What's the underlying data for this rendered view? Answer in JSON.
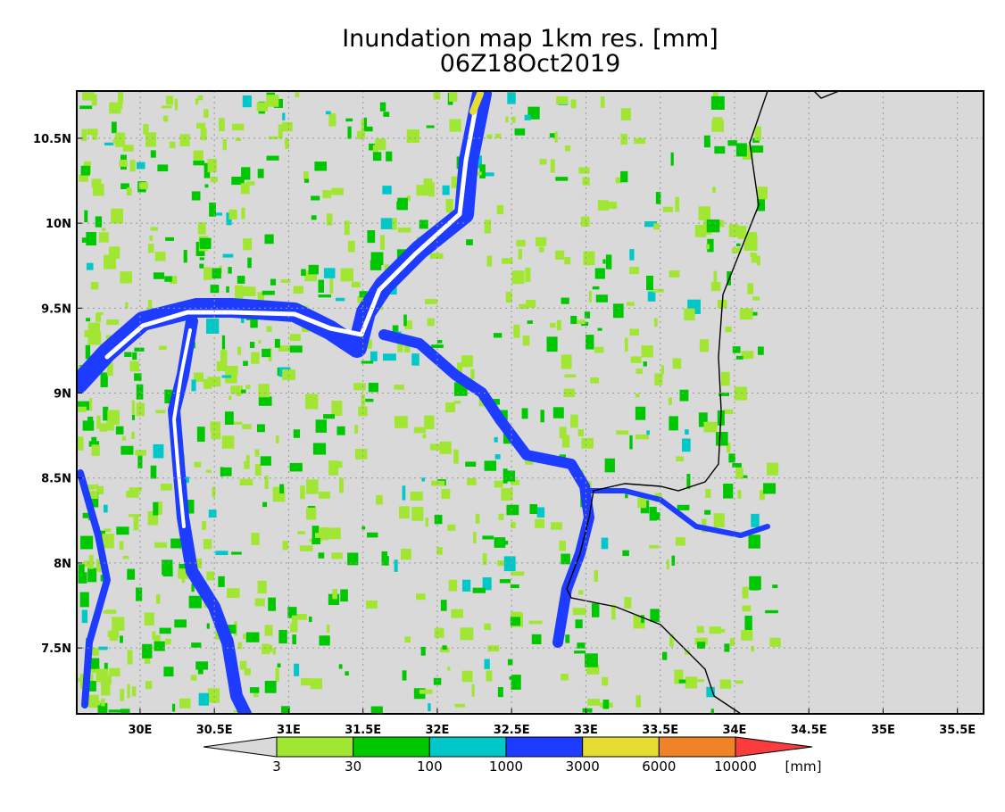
{
  "title": "Inundation map 1km res. [mm]",
  "subtitle": "06Z18Oct2019",
  "map": {
    "xlim": [
      29.574,
      35.676
    ],
    "ylim": [
      7.112,
      10.778
    ],
    "xticks": [
      {
        "value": 30,
        "label": "30E"
      },
      {
        "value": 30.5,
        "label": "30.5E"
      },
      {
        "value": 31,
        "label": "31E"
      },
      {
        "value": 31.5,
        "label": "31.5E"
      },
      {
        "value": 32,
        "label": "32E"
      },
      {
        "value": 32.5,
        "label": "32.5E"
      },
      {
        "value": 33,
        "label": "33E"
      },
      {
        "value": 33.5,
        "label": "33.5E"
      },
      {
        "value": 34,
        "label": "34E"
      },
      {
        "value": 34.5,
        "label": "34.5E"
      },
      {
        "value": 35,
        "label": "35E"
      },
      {
        "value": 35.5,
        "label": "35.5E"
      }
    ],
    "yticks": [
      {
        "value": 7.5,
        "label": "7.5N"
      },
      {
        "value": 8,
        "label": "8N"
      },
      {
        "value": 8.5,
        "label": "8.5N"
      },
      {
        "value": 9,
        "label": "9N"
      },
      {
        "value": 9.5,
        "label": "9.5N"
      },
      {
        "value": 10,
        "label": "10N"
      },
      {
        "value": 10.5,
        "label": "10.5N"
      }
    ],
    "grid": true
  },
  "colorbar": {
    "levels": [
      3,
      30,
      100,
      1000,
      3000,
      6000,
      10000
    ],
    "colors": [
      "#d9d9d9",
      "#a0e632",
      "#00c800",
      "#00c8c8",
      "#1e3cff",
      "#e6dc32",
      "#f08228",
      "#fa3c3c"
    ],
    "unit": "[mm]"
  }
}
